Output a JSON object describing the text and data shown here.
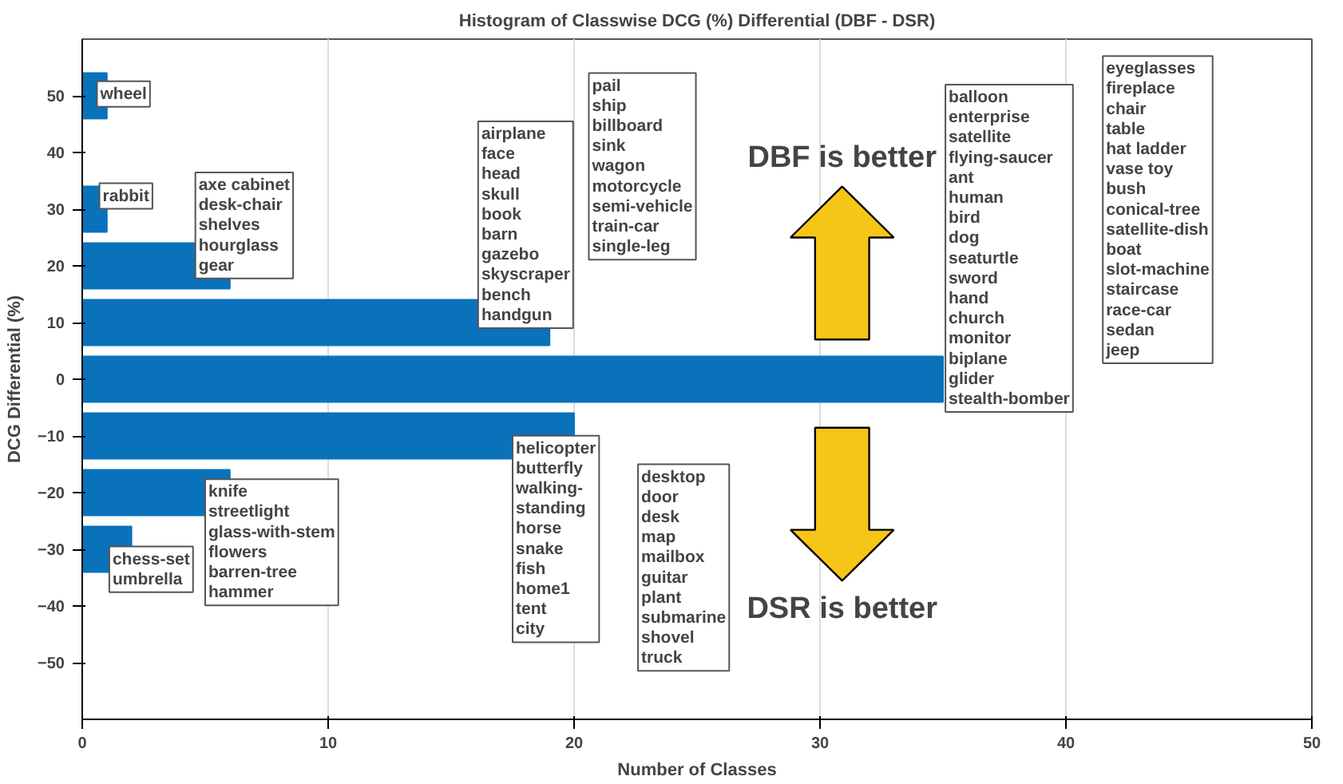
{
  "chart_data": {
    "type": "histogram",
    "orientation": "horizontal",
    "title": "Histogram of Classwise DCG (%) Differential (DBF - DSR)",
    "xlabel": "Number of Classes",
    "ylabel": "DCG Differential (%)",
    "bins": [
      -35,
      -25,
      -15,
      -5,
      5,
      15,
      25,
      35,
      45,
      55
    ],
    "values": [
      2,
      6,
      20,
      35,
      19,
      6,
      1,
      0,
      1
    ],
    "color": "#0a72ba",
    "xlim": [
      0,
      50
    ],
    "xticks": [
      0,
      10,
      20,
      30,
      40,
      50
    ],
    "ylim": [
      -60,
      60
    ],
    "yticks": [
      -50,
      -40,
      -30,
      -20,
      -10,
      0,
      10,
      20,
      30,
      40,
      50
    ],
    "grid": "x",
    "annotations": [
      "DBF is better",
      "DSR is better",
      "wheel",
      "rabbit",
      "axe cabinet\ndesk-chair\nshelves\nhourglass\ngear",
      "airplane\nface\nhead\nskull\nbook\nbarn\ngazebo\nskyscraper\nbench\nhandgun",
      "pail\nship\nbillboard\nsink\nwagon\nmotorcycle\nsemi-vehicle\ntrain-car\nsingle-leg",
      "balloon\nenterprise\nsatellite\nflying-saucer\nant\nhuman\nbird\ndog\nseaturtle\nsword\nhand\nchurch\nmonitor\nbiplane\nglider\nstealth-bomber",
      "eyeglasses\nfireplace\nchair\ntable\nhat ladder\nvase toy\nbush\nconical-tree\nsatellite-dish\nboat\nslot-machine\nstaircase\nrace-car\nsedan\njeep",
      "helicopter\nbutterfly\nwalking-\nstanding\nhorse\nsnake\nfish\nhome1\ntent\ncity",
      "desktop\ndoor\ndesk\nmap\nmailbox\nguitar\nplant\nsubmarine\nshovel\ntruck",
      "knife\nstreetlight\nglass-with-stem\nflowers\nbarren-tree\nhammer",
      "chess-set\numbrella"
    ]
  }
}
